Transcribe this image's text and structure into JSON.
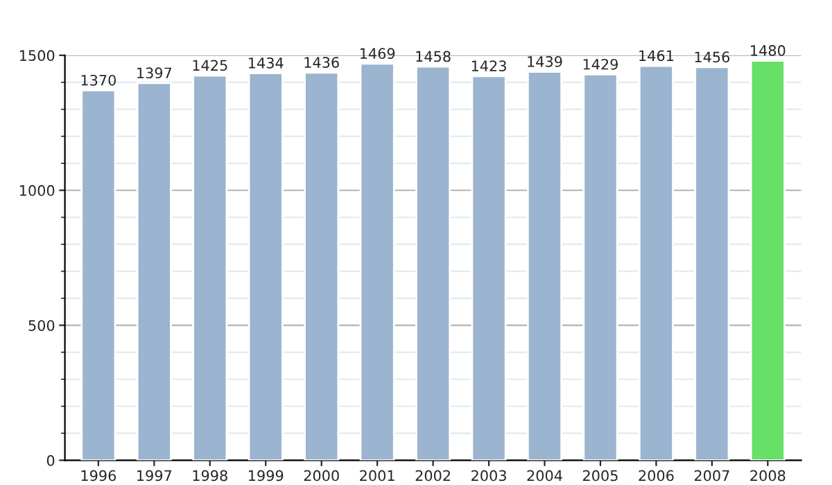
{
  "chart_data": {
    "type": "bar",
    "categories": [
      "1996",
      "1997",
      "1998",
      "1999",
      "2000",
      "2001",
      "2002",
      "2003",
      "2004",
      "2005",
      "2006",
      "2007",
      "2008"
    ],
    "values": [
      1370,
      1397,
      1425,
      1434,
      1436,
      1469,
      1458,
      1423,
      1439,
      1429,
      1461,
      1456,
      1480
    ],
    "colors": [
      "#9bb4cf",
      "#9bb4cf",
      "#9bb4cf",
      "#9bb4cf",
      "#9bb4cf",
      "#9bb4cf",
      "#9bb4cf",
      "#9bb4cf",
      "#9bb4cf",
      "#9bb4cf",
      "#9bb4cf",
      "#9bb4cf",
      "#66e066"
    ],
    "ylim": [
      0,
      1500
    ],
    "yticks": [
      0,
      500,
      1000,
      1500
    ],
    "grid": "y",
    "data_labels": true
  }
}
